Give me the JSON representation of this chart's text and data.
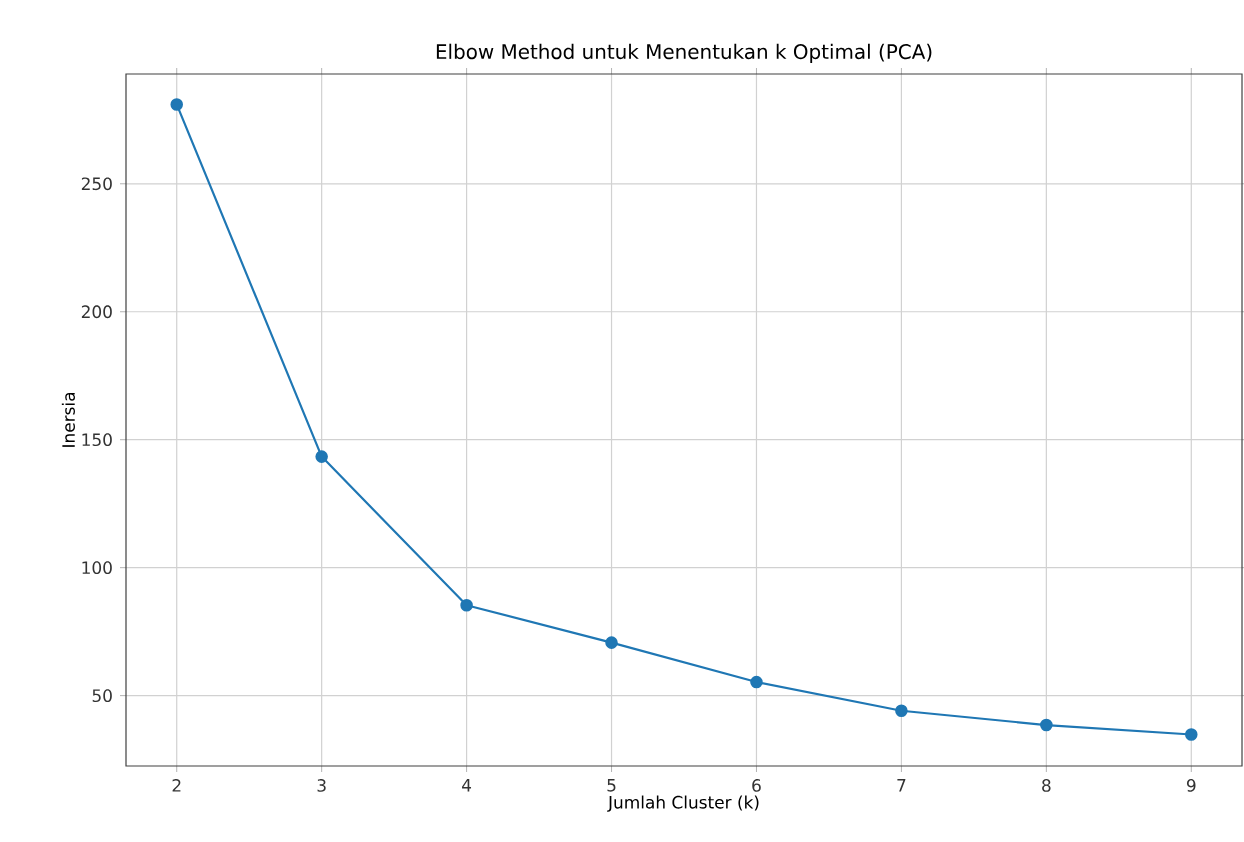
{
  "chart_data": {
    "type": "line",
    "title": "Elbow Method untuk Menentukan k Optimal (PCA)",
    "xlabel": "Jumlah Cluster (k)",
    "ylabel": "Inersia",
    "x": [
      2,
      3,
      4,
      5,
      6,
      7,
      8,
      9
    ],
    "series": [
      {
        "color": "#1f77b4",
        "values": [
          281,
          143.4,
          85.3,
          70.7,
          55.3,
          44.1,
          38.5,
          34.8
        ]
      }
    ],
    "xlim": [
      1.65,
      9.35
    ],
    "ylim": [
      22.5,
      292.9
    ],
    "xticks": [
      2,
      3,
      4,
      5,
      6,
      7,
      8,
      9
    ],
    "yticks": [
      50,
      100,
      150,
      200,
      250
    ],
    "grid": true,
    "marker": "circle",
    "line_style": "solid"
  }
}
